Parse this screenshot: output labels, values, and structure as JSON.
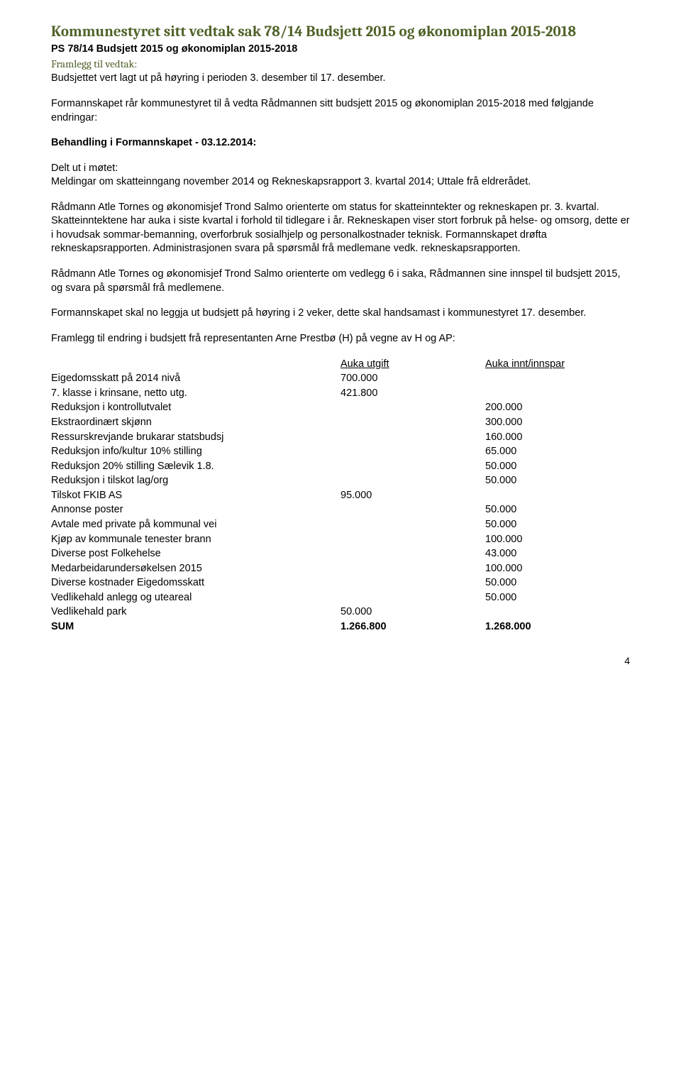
{
  "title": "Kommunestyret sitt vedtak sak 78/14 Budsjett 2015 og økonomiplan 2015-2018",
  "subline_bold": "PS 78/14 Budsjett 2015 og økonomiplan 2015-2018",
  "subline_green": "Framlegg til vedtak:",
  "intro": "Budsjettet vert lagt ut på høyring i perioden 3. desember til 17. desember.",
  "para1": "Formannskapet rår kommunestyret til å vedta Rådmannen sitt budsjett 2015 og økonomiplan 2015-2018 med følgjande endringar:",
  "behandling": "Behandling i Formannskapet - 03.12.2014:",
  "delt_ut": "Delt ut i møtet:",
  "meldingar": "Meldingar om skatteinngang november 2014 og Rekneskapsrapport 3. kvartal 2014; Uttale frå eldrerådet.",
  "para2": "Rådmann Atle Tornes og økonomisjef Trond Salmo orienterte om status for skatteinntekter og rekneskapen pr. 3. kvartal. Skatteinntektene har auka i siste kvartal i forhold til tidlegare i år. Rekneskapen viser stort forbruk på helse- og omsorg, dette er i hovudsak sommar-bemanning, overforbruk sosialhjelp og personalkostnader teknisk. Formannskapet drøfta rekneskapsrapporten. Administrasjonen svara på spørsmål frå medlemane vedk. rekneskapsrapporten.",
  "para3": "Rådmann Atle Tornes og økonomisjef Trond Salmo orienterte om vedlegg 6 i saka, Rådmannen sine innspel til budsjett 2015, og svara på spørsmål frå medlemene.",
  "para4": "Formannskapet skal no leggja ut budsjett på høyring i 2 veker, dette skal handsamast i kommunestyret 17. desember.",
  "para5": "Framlegg til endring i budsjett frå representanten Arne Prestbø (H) på vegne av H og AP:",
  "table": {
    "header_col1": "Auka utgift",
    "header_col2": "Auka innt/innspar",
    "rows": [
      {
        "label": "Eigedomsskatt på 2014 nivå",
        "c1": "700.000",
        "c2": ""
      },
      {
        "label": "7. klasse i krinsane, netto utg.",
        "c1": "421.800",
        "c2": ""
      },
      {
        "label": "Reduksjon i kontrollutvalet",
        "c1": "",
        "c2": "200.000"
      },
      {
        "label": "Ekstraordinært skjønn",
        "c1": "",
        "c2": "300.000"
      },
      {
        "label": "Ressurskrevjande brukarar statsbudsj",
        "c1": "",
        "c2": "160.000"
      },
      {
        "label": "Reduksjon info/kultur 10% stilling",
        "c1": "",
        "c2": " 65.000"
      },
      {
        "label": "Reduksjon 20% stilling Sælevik 1.8.",
        "c1": "",
        "c2": " 50.000"
      },
      {
        "label": "Reduksjon i tilskot lag/org",
        "c1": "",
        "c2": " 50.000"
      },
      {
        "label": "Tilskot FKIB AS",
        "c1": " 95.000",
        "c2": ""
      },
      {
        "label": "Annonse poster",
        "c1": "",
        "c2": " 50.000"
      },
      {
        "label": "Avtale med private på kommunal vei",
        "c1": "",
        "c2": " 50.000"
      },
      {
        "label": "Kjøp av kommunale tenester brann",
        "c1": "",
        "c2": "100.000"
      },
      {
        "label": "Diverse post Folkehelse",
        "c1": "",
        "c2": " 43.000"
      },
      {
        "label": "Medarbeidarundersøkelsen 2015",
        "c1": "",
        "c2": "100.000"
      },
      {
        "label": "Diverse kostnader Eigedomsskatt",
        "c1": "",
        "c2": " 50.000"
      },
      {
        "label": "Vedlikehald anlegg og uteareal",
        "c1": "",
        "c2": " 50.000"
      },
      {
        "label": "Vedlikehald park",
        "c1": " 50.000",
        "c2": ""
      }
    ],
    "sum_label": "SUM",
    "sum_c1": "1.266.800",
    "sum_c2": "1.268.000"
  },
  "page_number": "4"
}
